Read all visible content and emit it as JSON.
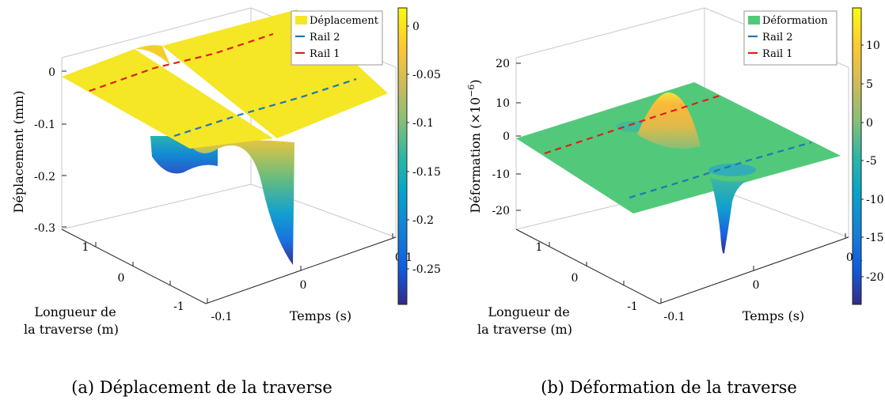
{
  "chart_data": [
    {
      "type": "surface",
      "caption": "(a) Déplacement de la traverse",
      "zlabel": "Déplacement (mm)",
      "xlabel_line1": "Longueur de",
      "xlabel_line2": "la traverse (m)",
      "ylabel": "Temps (s)",
      "z_ticks": [
        "0",
        "-0.1",
        "-0.2",
        "-0.3"
      ],
      "length_ticks": [
        "1",
        "0",
        "-1"
      ],
      "time_ticks": [
        "-0.1",
        "0",
        "0.1"
      ],
      "colorbar_ticks": [
        "0",
        "-0.05",
        "-0.1",
        "-0.15",
        "-0.2",
        "-0.25"
      ],
      "colorbar_range": [
        -0.29,
        0.015
      ],
      "zlim": [
        -0.3,
        0.0
      ],
      "xlim": [
        -1.5,
        1.5
      ],
      "ylim": [
        -0.1,
        0.1
      ],
      "surface_color": "#f5e626",
      "legend": [
        "Déplacement",
        "Rail 2",
        "Rail 1"
      ],
      "series": [
        {
          "name": "Déplacement",
          "description_values": {
            "baseline": 0.0,
            "min_center": -0.3,
            "min_rail2": -0.29,
            "secondary_dip": -0.13
          }
        },
        {
          "name": "Rail 2",
          "color": "#1f77b4"
        },
        {
          "name": "Rail 1",
          "color": "#e11d1d"
        }
      ]
    },
    {
      "type": "surface",
      "caption": "(b) Déformation de la traverse",
      "zlabel": "Déformation (×10",
      "zlabel_exp": "−6",
      "zlabel_close": ")",
      "xlabel_line1": "Longueur de",
      "xlabel_line2": "la traverse (m)",
      "ylabel": "Temps (s)",
      "z_ticks": [
        "20",
        "10",
        "0",
        "-10",
        "-20"
      ],
      "length_ticks": [
        "1",
        "0",
        "-1"
      ],
      "time_ticks": [
        "-0.1",
        "0",
        "0.1"
      ],
      "colorbar_ticks": [
        "10",
        "5",
        "0",
        "-5",
        "-10",
        "-15",
        "-20"
      ],
      "colorbar_range": [
        -24,
        14.5
      ],
      "zlim": [
        -20,
        20
      ],
      "xlim": [
        -1.5,
        1.5
      ],
      "ylim": [
        -0.1,
        0.1
      ],
      "surface_color": "#52c97a",
      "legend": [
        "Déformation",
        "Rail 2",
        "Rail 1"
      ],
      "series": [
        {
          "name": "Déformation",
          "description_values": {
            "baseline": 0.0,
            "peak_center": 12.0,
            "min_rail2": -23.0
          }
        },
        {
          "name": "Rail 2",
          "color": "#1f77b4"
        },
        {
          "name": "Rail 1",
          "color": "#e11d1d"
        }
      ]
    }
  ]
}
